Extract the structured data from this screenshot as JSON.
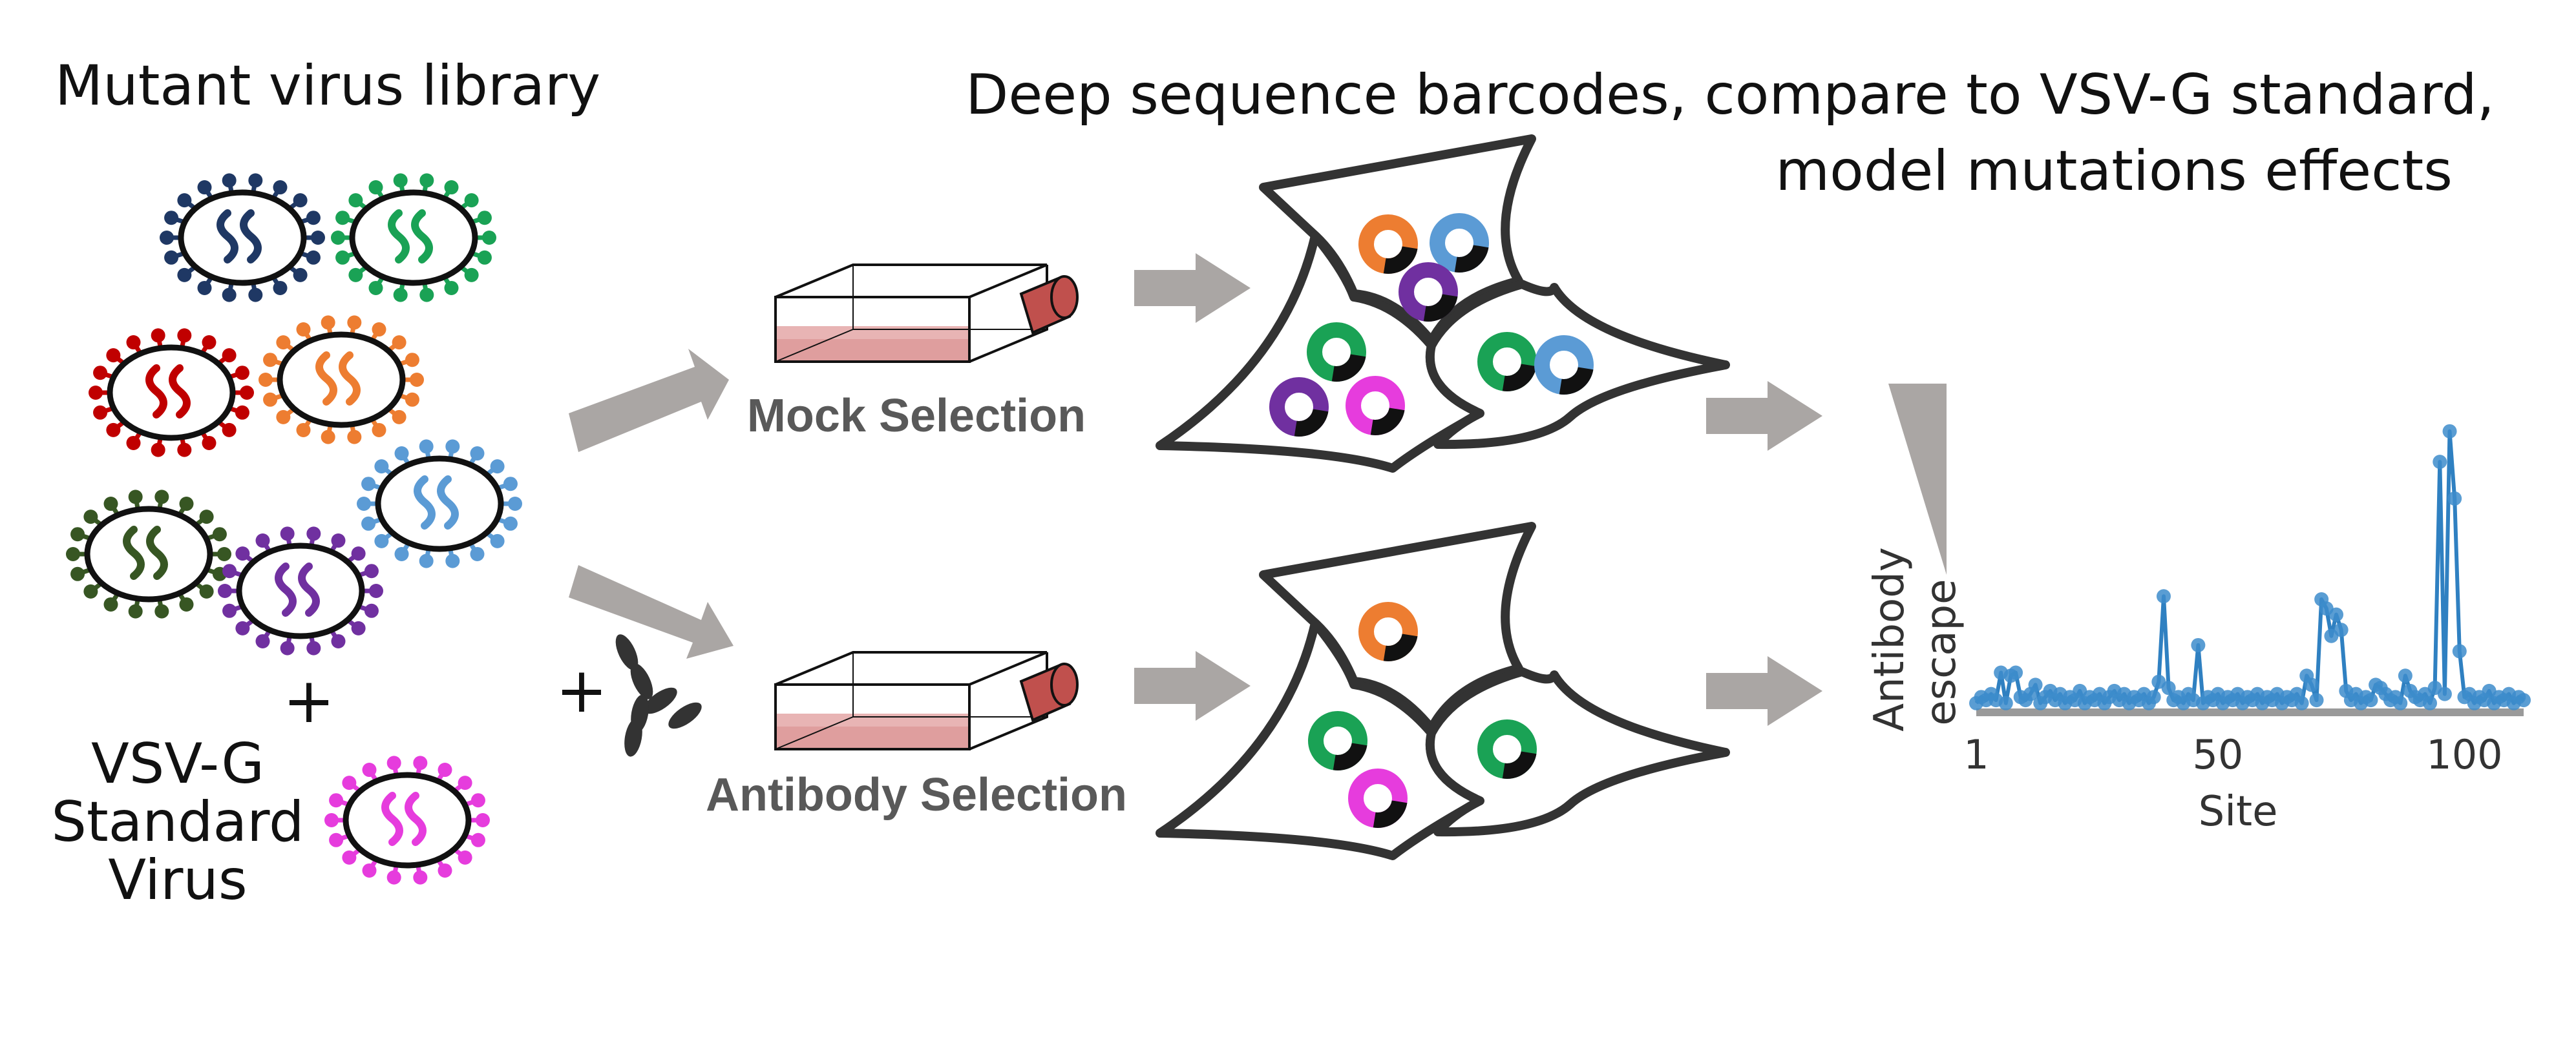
{
  "titles": {
    "library": "Mutant virus library",
    "deep_seq_line1": "Deep sequence barcodes, compare to VSV-G standard,",
    "deep_seq_line2": "model mutations effects"
  },
  "standard_virus": {
    "plus_sign": "+",
    "label_line1": "VSV-G",
    "label_line2": "Standard",
    "label_line3": "Virus"
  },
  "selections": {
    "mock_label": "Mock Selection",
    "antibody_label": "Antibody Selection",
    "antibody_plus": "+"
  },
  "colors": {
    "arrow": "#aaa6a4",
    "outline": "#222222",
    "flask_cap": "#c0504d",
    "flask_liquid": "#e8b4b4",
    "plot_blue": "#2f80c1",
    "plot_points": "#3d8ccb",
    "label_gray": "#595959"
  },
  "virus_colors": [
    "navy",
    "green",
    "red",
    "orange",
    "blue",
    "darkgreen",
    "purple"
  ],
  "chart_data": {
    "type": "line",
    "ylabel_line1": "Antibody",
    "ylabel_line2": "escape",
    "xlabel": "Site",
    "x_ticks": [
      "1",
      "50",
      "100"
    ],
    "xlim": [
      1,
      112
    ],
    "ylim": [
      0,
      1
    ],
    "series": [
      {
        "x": [
          1,
          2,
          3,
          4,
          5,
          6,
          7,
          8,
          9,
          10,
          11,
          12,
          13,
          14,
          15,
          16,
          17,
          18,
          19,
          20,
          21,
          22,
          23,
          24,
          25,
          26,
          27,
          28,
          29,
          30,
          31,
          32,
          33,
          34,
          35,
          36,
          37,
          38,
          39,
          40,
          41,
          42,
          43,
          44,
          45,
          46,
          47,
          48,
          49,
          50,
          51,
          52,
          53,
          54,
          55,
          56,
          57,
          58,
          59,
          60,
          61,
          62,
          63,
          64,
          65,
          66,
          67,
          68,
          69,
          70,
          71,
          72,
          73,
          74,
          75,
          76,
          77,
          78,
          79,
          80,
          81,
          82,
          83,
          84,
          85,
          86,
          87,
          88,
          89,
          90,
          91,
          92,
          93,
          94,
          95,
          96,
          97,
          98,
          99,
          100,
          101,
          102,
          103,
          104,
          105,
          106,
          107,
          108,
          109,
          110,
          111,
          112
        ],
        "y": [
          0.03,
          0.05,
          0.04,
          0.06,
          0.04,
          0.13,
          0.03,
          0.12,
          0.13,
          0.05,
          0.04,
          0.06,
          0.09,
          0.03,
          0.05,
          0.07,
          0.04,
          0.06,
          0.03,
          0.05,
          0.04,
          0.07,
          0.03,
          0.05,
          0.04,
          0.06,
          0.03,
          0.05,
          0.07,
          0.04,
          0.06,
          0.03,
          0.05,
          0.04,
          0.06,
          0.03,
          0.05,
          0.1,
          0.38,
          0.08,
          0.04,
          0.05,
          0.03,
          0.06,
          0.04,
          0.22,
          0.03,
          0.05,
          0.04,
          0.06,
          0.03,
          0.05,
          0.04,
          0.06,
          0.03,
          0.05,
          0.04,
          0.06,
          0.03,
          0.05,
          0.04,
          0.06,
          0.03,
          0.05,
          0.04,
          0.06,
          0.03,
          0.12,
          0.09,
          0.04,
          0.37,
          0.34,
          0.25,
          0.32,
          0.27,
          0.07,
          0.04,
          0.06,
          0.03,
          0.05,
          0.04,
          0.09,
          0.08,
          0.06,
          0.04,
          0.05,
          0.03,
          0.12,
          0.07,
          0.05,
          0.04,
          0.06,
          0.03,
          0.08,
          0.82,
          0.06,
          0.92,
          0.7,
          0.2,
          0.05,
          0.06,
          0.03,
          0.05,
          0.04,
          0.07,
          0.03,
          0.05,
          0.04,
          0.06,
          0.03,
          0.05,
          0.04
        ]
      }
    ]
  }
}
